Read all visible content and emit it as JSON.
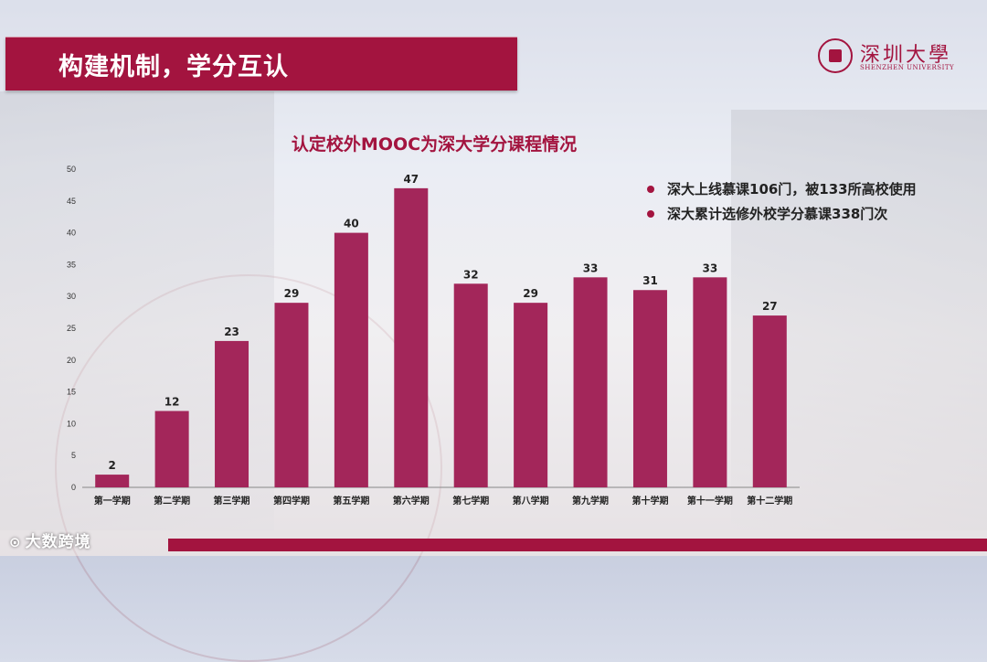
{
  "slide": {
    "title": "构建机制，学分互认",
    "logo": {
      "cn": "深圳大學",
      "en": "SHENZHEN UNIVERSITY"
    },
    "notes": [
      "深大上线慕课106门，被133所高校使用",
      "深大累计选修外校学分慕课338门次"
    ],
    "watermark": "大数跨境",
    "watermark_icon": "k100-logo-icon"
  },
  "colors": {
    "accent": "#a3143f",
    "bar": "#a3265a"
  },
  "chart_data": {
    "type": "bar",
    "title": "认定校外MOOC为深大学分课程情况",
    "categories": [
      "第一学期",
      "第二学期",
      "第三学期",
      "第四学期",
      "第五学期",
      "第六学期",
      "第七学期",
      "第八学期",
      "第九学期",
      "第十学期",
      "第十一学期",
      "第十二学期"
    ],
    "values": [
      2,
      12,
      23,
      29,
      40,
      47,
      32,
      29,
      33,
      31,
      33,
      27
    ],
    "yticks": [
      0,
      5,
      10,
      15,
      20,
      25,
      30,
      35,
      40,
      45,
      50
    ],
    "ylim": [
      0,
      50
    ],
    "grid": false,
    "data_labels": true
  }
}
